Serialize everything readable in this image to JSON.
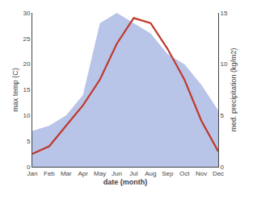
{
  "chart_data": {
    "type": "line",
    "categories": [
      "Jan",
      "Feb",
      "Mar",
      "Apr",
      "May",
      "Jun",
      "Jul",
      "Aug",
      "Sep",
      "Oct",
      "Nov",
      "Dec"
    ],
    "xlabel": "date (month)",
    "ylabel": "max temp (C)",
    "y2label": "med. precipitation (kg/m2)",
    "series": [
      {
        "type": "area",
        "axis": "y2",
        "color": "#b8c4e8",
        "values": [
          3.5,
          4.0,
          5.0,
          7.0,
          14.0,
          15.0,
          14.0,
          13.0,
          11.0,
          10.0,
          8.0,
          5.5
        ]
      },
      {
        "type": "line",
        "color": "#c0392b",
        "values": [
          2.5,
          4.0,
          8.0,
          12.0,
          17.0,
          24.0,
          29.0,
          28.0,
          23.0,
          17.0,
          9.0,
          3.0
        ]
      }
    ],
    "ylim": [
      0,
      30
    ],
    "yticks": [
      0,
      5,
      10,
      15,
      20,
      25,
      30
    ],
    "y2lim": [
      0,
      15
    ],
    "y2ticks": [
      0,
      5,
      10,
      15
    ],
    "grid": false
  }
}
